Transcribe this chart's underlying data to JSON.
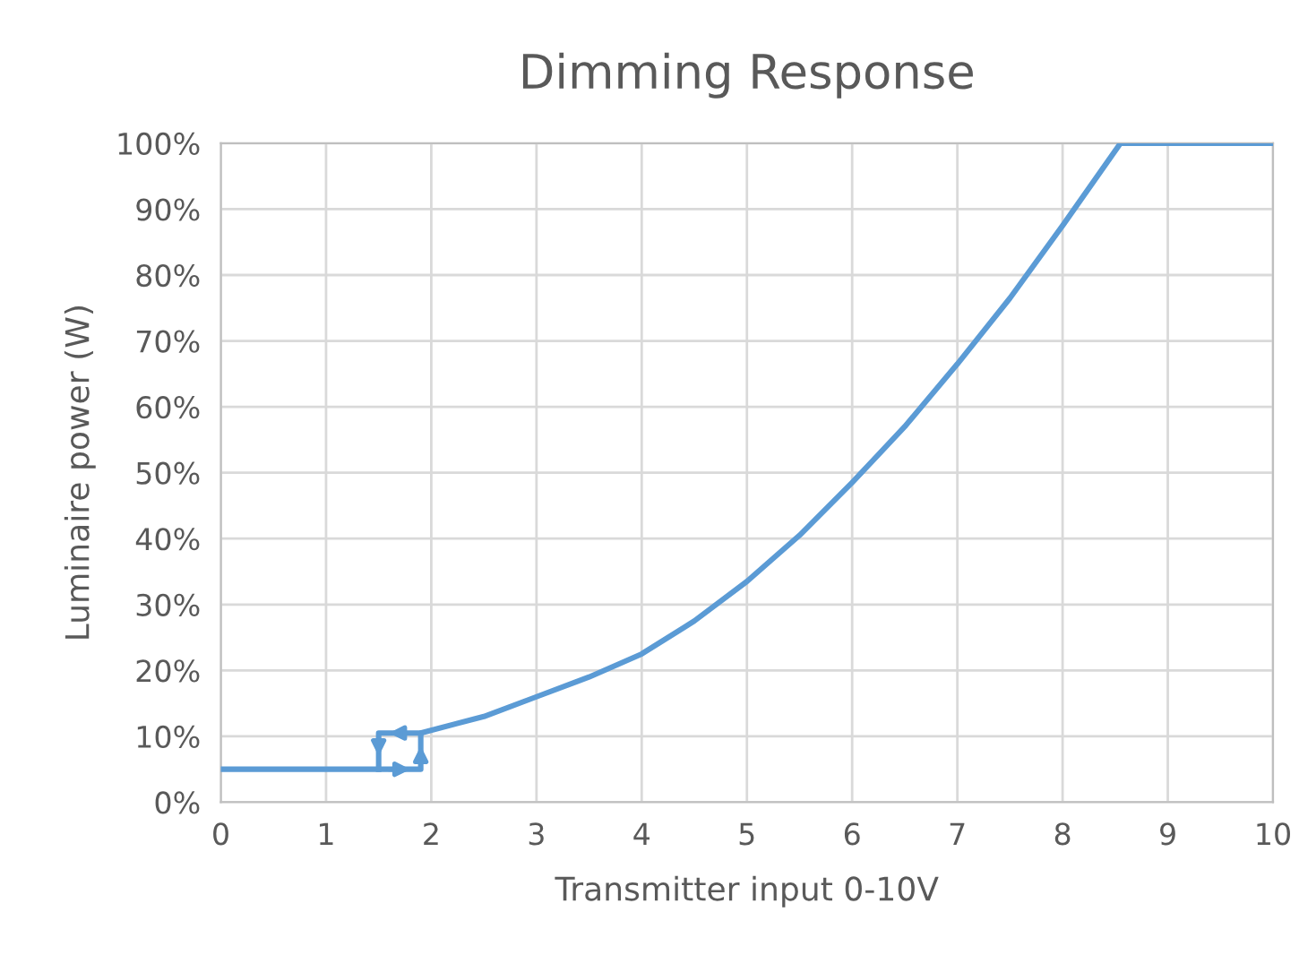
{
  "chart_data": {
    "type": "line",
    "title": "Dimming Response",
    "xlabel": "Transmitter input 0-10V",
    "ylabel": "Luminaire power (W)",
    "series": [
      {
        "color": "#5b9bd5",
        "x": [
          0,
          1.9,
          1.9,
          2.5,
          3,
          3.5,
          4,
          4.5,
          5,
          5.5,
          6,
          6.5,
          7,
          7.5,
          8,
          8.55,
          10
        ],
        "values": [
          5,
          5,
          10.5,
          13,
          16,
          19,
          22.5,
          27.5,
          33.5,
          40.5,
          48.5,
          57,
          66.5,
          76.5,
          87.5,
          100,
          100
        ]
      },
      {
        "color": "#5b9bd5",
        "x": [
          1.9,
          1.5,
          1.5
        ],
        "values": [
          10.5,
          10.5,
          5
        ]
      }
    ],
    "xlim": [
      0,
      10
    ],
    "xticks": [
      0,
      1,
      2,
      3,
      4,
      5,
      6,
      7,
      8,
      9,
      10
    ],
    "ylim": [
      0,
      100
    ],
    "yticks": [
      {
        "value": 0,
        "label": "0%"
      },
      {
        "value": 10,
        "label": "10%"
      },
      {
        "value": 20,
        "label": "20%"
      },
      {
        "value": 30,
        "label": "30%"
      },
      {
        "value": 40,
        "label": "40%"
      },
      {
        "value": 50,
        "label": "50%"
      },
      {
        "value": 60,
        "label": "60%"
      },
      {
        "value": 70,
        "label": "70%"
      },
      {
        "value": 80,
        "label": "80%"
      },
      {
        "value": 90,
        "label": "90%"
      },
      {
        "value": 100,
        "label": "100%"
      }
    ],
    "grid": true,
    "marker": "none",
    "line_style": "solid"
  }
}
